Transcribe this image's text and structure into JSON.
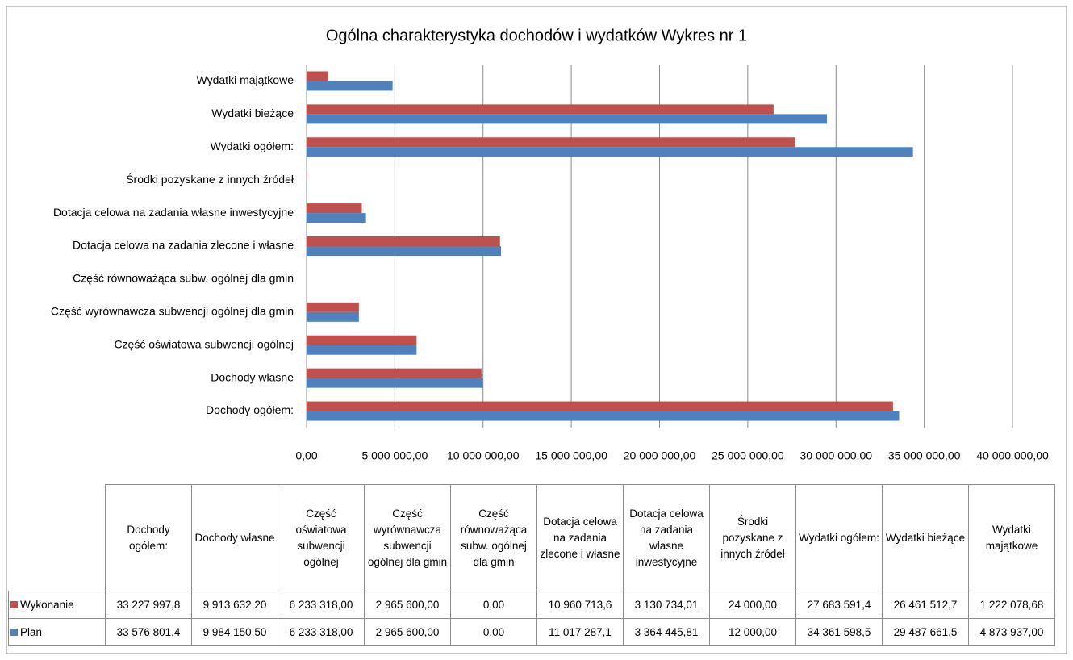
{
  "chart_data": {
    "type": "barh",
    "title": "Ogólna charakterystyka dochodów i wydatków   Wykres nr 1",
    "categories": [
      "Dochody ogółem:",
      "Dochody własne",
      "Część oświatowa subwencji ogólnej",
      "Część wyrównawcza subwencji ogólnej dla gmin",
      "Część równoważąca subw. ogólnej dla gmin",
      "Dotacja celowa na zadania zlecone i własne",
      "Dotacja celowa na zadania własne inwestycyjne",
      "Środki pozyskane z innych źródeł",
      "Wydatki ogółem:",
      "Wydatki bieżące",
      "Wydatki majątkowe"
    ],
    "series": [
      {
        "name": "Wykonanie",
        "color": "#c0504d",
        "values": [
          33227997.8,
          9913632.2,
          6233318.0,
          2965600.0,
          0,
          10960713.6,
          3130734.01,
          24000.0,
          27683591.4,
          26461512.7,
          1222078.68
        ],
        "value_labels": [
          "33 227 997,8",
          "9 913 632,20",
          "6 233 318,00",
          "2 965 600,00",
          "0,00",
          "10 960 713,6",
          "3 130 734,01",
          "24 000,00",
          "27 683 591,4",
          "26 461 512,7",
          "1 222 078,68"
        ]
      },
      {
        "name": "Plan",
        "color": "#4f81bd",
        "values": [
          33576801.4,
          9984150.5,
          6233318.0,
          2965600.0,
          0,
          11017287.1,
          3364445.81,
          12000.0,
          34361598.5,
          29487661.5,
          4873937.0
        ],
        "value_labels": [
          "33 576 801,4",
          "9 984 150,50",
          "6 233 318,00",
          "2 965 600,00",
          "0,00",
          "11 017 287,1",
          "3 364 445,81",
          "12 000,00",
          "34 361 598,5",
          "29 487 661,5",
          "4 873 937,00"
        ]
      }
    ],
    "xlim": [
      0,
      40000000
    ],
    "xticks": [
      {
        "value": 0,
        "label": "0,00"
      },
      {
        "value": 5000000,
        "label": "5 000 000,00"
      },
      {
        "value": 10000000,
        "label": "10 000 000,00"
      },
      {
        "value": 15000000,
        "label": "15 000 000,00"
      },
      {
        "value": 20000000,
        "label": "20 000 000,00"
      },
      {
        "value": 25000000,
        "label": "25 000 000,00"
      },
      {
        "value": 30000000,
        "label": "30 000 000,00"
      },
      {
        "value": 35000000,
        "label": "35 000 000,00"
      },
      {
        "value": 40000000,
        "label": "40 000 000,00"
      }
    ],
    "grid": true
  }
}
